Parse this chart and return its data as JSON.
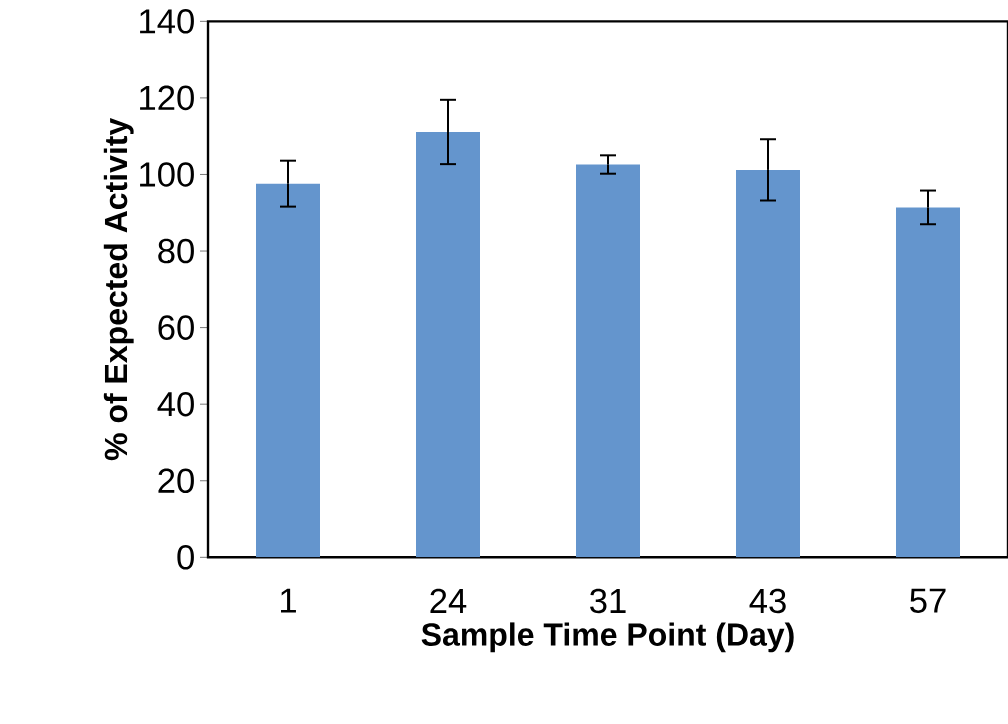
{
  "chart_data": {
    "type": "bar",
    "xlabel": "Sample Time Point (Day)",
    "ylabel": "% of Expected Activity",
    "categories": [
      "1",
      "24",
      "31",
      "43",
      "57"
    ],
    "values": [
      97.6,
      111.1,
      102.6,
      101.2,
      91.4
    ],
    "errors": [
      6,
      8.4,
      2.4,
      8,
      4.4
    ],
    "color": "#6495cd",
    "ylim": [
      0,
      140
    ],
    "yticks": [
      0,
      20,
      40,
      60,
      80,
      100,
      120,
      140
    ],
    "grid": false
  }
}
